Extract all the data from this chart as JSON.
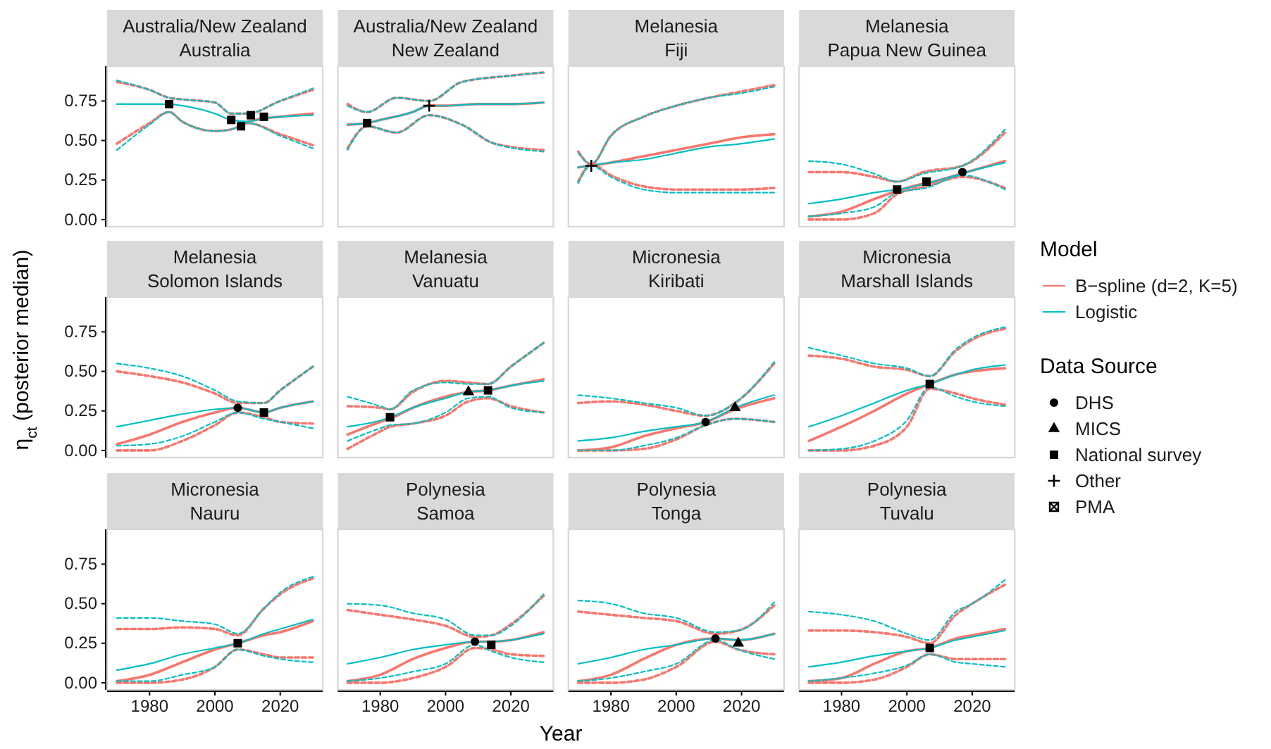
{
  "chart_data": [
    {
      "type": "line",
      "title": "Australia/New Zealand",
      "subtitle": "Australia",
      "xlim": [
        1967,
        2033
      ],
      "ylim": [
        -0.045,
        0.97
      ],
      "yticks": [
        {
          "value": 0,
          "label": "0.00"
        },
        {
          "value": 0.25,
          "label": "0.25"
        },
        {
          "value": 0.5,
          "label": "0.50"
        },
        {
          "value": 0.75,
          "label": "0.75"
        }
      ],
      "tick_labels": "y",
      "series": [
        {
          "color": "#f8766d",
          "line_style": "solid",
          "x": [
            2010,
            2015,
            2020,
            2030
          ],
          "values": [
            0.62,
            0.64,
            0.65,
            0.67
          ]
        },
        {
          "color": "#00bfc4",
          "line_style": "solid",
          "x": [
            1970,
            1980,
            1986,
            1990,
            2000,
            2005,
            2010,
            2015,
            2020,
            2030
          ],
          "values": [
            0.73,
            0.73,
            0.73,
            0.72,
            0.67,
            0.63,
            0.62,
            0.64,
            0.65,
            0.66
          ]
        },
        {
          "color": "#f8766d",
          "line_style": "dashed",
          "x": [
            1970,
            1980,
            1986,
            1990,
            2000,
            2005,
            2010,
            2020,
            2030
          ],
          "values": [
            0.87,
            0.82,
            0.77,
            0.76,
            0.74,
            0.67,
            0.67,
            0.75,
            0.82
          ]
        },
        {
          "color": "#00bfc4",
          "line_style": "dashed",
          "x": [
            1970,
            1980,
            1986,
            1990,
            2000,
            2005,
            2010,
            2020,
            2030
          ],
          "values": [
            0.88,
            0.82,
            0.77,
            0.76,
            0.74,
            0.67,
            0.67,
            0.75,
            0.83
          ]
        },
        {
          "color": "#f8766d",
          "line_style": "dashed",
          "x": [
            1970,
            1980,
            1986,
            1990,
            2000,
            2005,
            2010,
            2020,
            2030
          ],
          "values": [
            0.48,
            0.61,
            0.68,
            0.62,
            0.56,
            0.57,
            0.61,
            0.54,
            0.47
          ]
        },
        {
          "color": "#00bfc4",
          "line_style": "dashed",
          "x": [
            1970,
            1980,
            1986,
            1990,
            2000,
            2005,
            2010,
            2020,
            2030
          ],
          "values": [
            0.44,
            0.6,
            0.68,
            0.62,
            0.56,
            0.57,
            0.61,
            0.53,
            0.45
          ]
        },
        {
          "type": "scatter",
          "color": "#000000",
          "marker": "square",
          "x": [
            1986,
            2005,
            2008,
            2011,
            2015
          ],
          "values": [
            0.73,
            0.63,
            0.59,
            0.66,
            0.65
          ]
        }
      ]
    },
    {
      "type": "line",
      "title": "Australia/New Zealand",
      "subtitle": "New Zealand",
      "xlim": [
        1967,
        2033
      ],
      "ylim": [
        -0.045,
        0.97
      ],
      "tick_labels": false,
      "series": [
        {
          "color": "#f8766d",
          "line_style": "solid",
          "x": [
            1970,
            1976,
            1980,
            1990,
            1995,
            2000,
            2010,
            2020,
            2030
          ],
          "values": [
            0.6,
            0.61,
            0.63,
            0.68,
            0.72,
            0.72,
            0.73,
            0.73,
            0.74
          ]
        },
        {
          "color": "#00bfc4",
          "line_style": "solid",
          "x": [
            1970,
            1976,
            1980,
            1990,
            1995,
            2000,
            2010,
            2020,
            2030
          ],
          "values": [
            0.6,
            0.61,
            0.63,
            0.68,
            0.72,
            0.72,
            0.73,
            0.73,
            0.74
          ]
        },
        {
          "color": "#f8766d",
          "line_style": "dashed",
          "x": [
            1970,
            1976,
            1985,
            1995,
            2005,
            2020,
            2030
          ],
          "values": [
            0.73,
            0.68,
            0.77,
            0.75,
            0.87,
            0.91,
            0.93
          ]
        },
        {
          "color": "#00bfc4",
          "line_style": "dashed",
          "x": [
            1970,
            1976,
            1985,
            1995,
            2005,
            2020,
            2030
          ],
          "values": [
            0.72,
            0.68,
            0.77,
            0.75,
            0.87,
            0.91,
            0.93
          ]
        },
        {
          "color": "#f8766d",
          "line_style": "dashed",
          "x": [
            1970,
            1976,
            1985,
            1995,
            2005,
            2015,
            2030
          ],
          "values": [
            0.45,
            0.59,
            0.55,
            0.66,
            0.6,
            0.48,
            0.44
          ]
        },
        {
          "color": "#00bfc4",
          "line_style": "dashed",
          "x": [
            1970,
            1976,
            1985,
            1995,
            2005,
            2015,
            2030
          ],
          "values": [
            0.44,
            0.59,
            0.55,
            0.66,
            0.6,
            0.48,
            0.43
          ]
        },
        {
          "type": "scatter",
          "color": "#000000",
          "marker": "square",
          "x": [
            1976
          ],
          "values": [
            0.61
          ]
        },
        {
          "type": "scatter",
          "color": "#000000",
          "marker": "cross",
          "x": [
            1995
          ],
          "values": [
            0.72
          ]
        }
      ]
    },
    {
      "type": "line",
      "title": "Melanesia",
      "subtitle": "Fiji",
      "xlim": [
        1967,
        2033
      ],
      "ylim": [
        -0.045,
        0.97
      ],
      "tick_labels": false,
      "series": [
        {
          "color": "#f8766d",
          "line_style": "solid",
          "x": [
            1970,
            1980,
            1990,
            2000,
            2010,
            2020,
            2030
          ],
          "values": [
            0.33,
            0.36,
            0.4,
            0.44,
            0.48,
            0.52,
            0.54
          ]
        },
        {
          "color": "#00bfc4",
          "line_style": "solid",
          "x": [
            1970,
            1980,
            1990,
            2000,
            2010,
            2020,
            2030
          ],
          "values": [
            0.33,
            0.36,
            0.38,
            0.42,
            0.46,
            0.48,
            0.51
          ]
        },
        {
          "color": "#f8766d",
          "line_style": "dashed",
          "x": [
            1970,
            1974,
            1980,
            1990,
            2000,
            2010,
            2020,
            2030
          ],
          "values": [
            0.43,
            0.35,
            0.53,
            0.65,
            0.72,
            0.77,
            0.81,
            0.85
          ]
        },
        {
          "color": "#00bfc4",
          "line_style": "dashed",
          "x": [
            1970,
            1974,
            1980,
            1990,
            2000,
            2010,
            2020,
            2030
          ],
          "values": [
            0.42,
            0.35,
            0.53,
            0.65,
            0.72,
            0.77,
            0.8,
            0.84
          ]
        },
        {
          "color": "#f8766d",
          "line_style": "dashed",
          "x": [
            1970,
            1974,
            1980,
            1990,
            2000,
            2010,
            2020,
            2030
          ],
          "values": [
            0.24,
            0.35,
            0.28,
            0.21,
            0.19,
            0.19,
            0.19,
            0.2
          ]
        },
        {
          "color": "#00bfc4",
          "line_style": "dashed",
          "x": [
            1970,
            1974,
            1980,
            1990,
            2000,
            2010,
            2020,
            2030
          ],
          "values": [
            0.23,
            0.34,
            0.27,
            0.19,
            0.17,
            0.17,
            0.17,
            0.17
          ]
        },
        {
          "type": "scatter",
          "color": "#000000",
          "marker": "cross",
          "x": [
            1974
          ],
          "values": [
            0.34
          ]
        }
      ]
    },
    {
      "type": "line",
      "title": "Melanesia",
      "subtitle": "Papua New Guinea",
      "xlim": [
        1967,
        2033
      ],
      "ylim": [
        -0.045,
        0.97
      ],
      "tick_labels": false,
      "series": [
        {
          "color": "#f8766d",
          "line_style": "solid",
          "x": [
            1970,
            1980,
            1990,
            2000,
            2010,
            2020,
            2030
          ],
          "values": [
            0.02,
            0.05,
            0.13,
            0.2,
            0.25,
            0.31,
            0.37
          ]
        },
        {
          "color": "#00bfc4",
          "line_style": "solid",
          "x": [
            1970,
            1980,
            1990,
            2000,
            2010,
            2020,
            2030
          ],
          "values": [
            0.1,
            0.13,
            0.17,
            0.2,
            0.25,
            0.31,
            0.36
          ]
        },
        {
          "color": "#f8766d",
          "line_style": "dashed",
          "x": [
            1970,
            1980,
            1990,
            1997,
            2005,
            2017,
            2030
          ],
          "values": [
            0.3,
            0.3,
            0.27,
            0.24,
            0.3,
            0.34,
            0.55
          ]
        },
        {
          "color": "#00bfc4",
          "line_style": "dashed",
          "x": [
            1970,
            1980,
            1990,
            1997,
            2005,
            2017,
            2030
          ],
          "values": [
            0.37,
            0.35,
            0.29,
            0.24,
            0.29,
            0.34,
            0.57
          ]
        },
        {
          "color": "#f8766d",
          "line_style": "dashed",
          "x": [
            1970,
            1980,
            1990,
            1997,
            2006,
            2017,
            2030
          ],
          "values": [
            0,
            0,
            0.04,
            0.16,
            0.21,
            0.27,
            0.2
          ]
        },
        {
          "color": "#00bfc4",
          "line_style": "dashed",
          "x": [
            1970,
            1980,
            1990,
            1997,
            2006,
            2017,
            2030
          ],
          "values": [
            0.02,
            0.04,
            0.08,
            0.17,
            0.2,
            0.28,
            0.19
          ]
        },
        {
          "type": "scatter",
          "color": "#000000",
          "marker": "square",
          "x": [
            1997,
            2006
          ],
          "values": [
            0.19,
            0.24
          ]
        },
        {
          "type": "scatter",
          "color": "#000000",
          "marker": "circle",
          "x": [
            2017
          ],
          "values": [
            0.3
          ]
        }
      ]
    },
    {
      "type": "line",
      "title": "Melanesia",
      "subtitle": "Solomon Islands",
      "ylabel": "η$_{ct}$ (posterior median)",
      "xlim": [
        1967,
        2033
      ],
      "ylim": [
        -0.045,
        0.97
      ],
      "yticks": [
        {
          "value": 0,
          "label": "0.00"
        },
        {
          "value": 0.25,
          "label": "0.25"
        },
        {
          "value": 0.5,
          "label": "0.50"
        },
        {
          "value": 0.75,
          "label": "0.75"
        }
      ],
      "tick_labels": "y",
      "series": [
        {
          "color": "#f8766d",
          "line_style": "solid",
          "x": [
            1970,
            1980,
            1990,
            2000,
            2007,
            2015,
            2020,
            2030
          ],
          "values": [
            0.04,
            0.1,
            0.18,
            0.24,
            0.27,
            0.24,
            0.27,
            0.31
          ]
        },
        {
          "color": "#00bfc4",
          "line_style": "solid",
          "x": [
            1970,
            1980,
            1990,
            2000,
            2007,
            2015,
            2020,
            2030
          ],
          "values": [
            0.15,
            0.19,
            0.23,
            0.26,
            0.27,
            0.24,
            0.27,
            0.31
          ]
        },
        {
          "color": "#f8766d",
          "line_style": "dashed",
          "x": [
            1970,
            1980,
            1990,
            2000,
            2007,
            2015,
            2020,
            2030
          ],
          "values": [
            0.5,
            0.47,
            0.43,
            0.36,
            0.3,
            0.3,
            0.38,
            0.53
          ]
        },
        {
          "color": "#00bfc4",
          "line_style": "dashed",
          "x": [
            1970,
            1980,
            1990,
            2000,
            2007,
            2015,
            2020,
            2030
          ],
          "values": [
            0.55,
            0.52,
            0.47,
            0.38,
            0.31,
            0.3,
            0.38,
            0.53
          ]
        },
        {
          "color": "#f8766d",
          "line_style": "dashed",
          "x": [
            1970,
            1980,
            1990,
            2000,
            2007,
            2015,
            2020,
            2030
          ],
          "values": [
            0,
            0,
            0.06,
            0.16,
            0.24,
            0.21,
            0.18,
            0.17
          ]
        },
        {
          "color": "#00bfc4",
          "line_style": "dashed",
          "x": [
            1970,
            1980,
            1990,
            2000,
            2007,
            2015,
            2020,
            2030
          ],
          "values": [
            0.03,
            0.04,
            0.09,
            0.18,
            0.24,
            0.2,
            0.18,
            0.14
          ]
        },
        {
          "type": "scatter",
          "color": "#000000",
          "marker": "circle",
          "x": [
            2007
          ],
          "values": [
            0.27
          ]
        },
        {
          "type": "scatter",
          "color": "#000000",
          "marker": "square",
          "x": [
            2015
          ],
          "values": [
            0.24
          ]
        }
      ]
    },
    {
      "type": "line",
      "title": "Melanesia",
      "subtitle": "Vanuatu",
      "xlim": [
        1967,
        2033
      ],
      "ylim": [
        -0.045,
        0.97
      ],
      "tick_labels": false,
      "series": [
        {
          "color": "#f8766d",
          "line_style": "solid",
          "x": [
            1970,
            1980,
            1983,
            1990,
            2000,
            2007,
            2013,
            2020,
            2030
          ],
          "values": [
            0.1,
            0.18,
            0.2,
            0.27,
            0.34,
            0.37,
            0.38,
            0.41,
            0.45
          ]
        },
        {
          "color": "#00bfc4",
          "line_style": "solid",
          "x": [
            1970,
            1980,
            1983,
            1990,
            2000,
            2007,
            2013,
            2020,
            2030
          ],
          "values": [
            0.15,
            0.19,
            0.21,
            0.27,
            0.33,
            0.37,
            0.38,
            0.41,
            0.44
          ]
        },
        {
          "color": "#f8766d",
          "line_style": "dashed",
          "x": [
            1970,
            1980,
            1983,
            1990,
            2000,
            2007,
            2013,
            2020,
            2030
          ],
          "values": [
            0.28,
            0.27,
            0.26,
            0.37,
            0.44,
            0.43,
            0.42,
            0.53,
            0.68
          ]
        },
        {
          "color": "#00bfc4",
          "line_style": "dashed",
          "x": [
            1970,
            1980,
            1983,
            1990,
            2000,
            2007,
            2013,
            2020,
            2030
          ],
          "values": [
            0.34,
            0.28,
            0.26,
            0.38,
            0.43,
            0.42,
            0.42,
            0.53,
            0.68
          ]
        },
        {
          "color": "#f8766d",
          "line_style": "dashed",
          "x": [
            1970,
            1980,
            1983,
            1990,
            2000,
            2007,
            2013,
            2020,
            2030
          ],
          "values": [
            0.01,
            0.12,
            0.15,
            0.17,
            0.22,
            0.31,
            0.33,
            0.28,
            0.24
          ]
        },
        {
          "color": "#00bfc4",
          "line_style": "dashed",
          "x": [
            1970,
            1980,
            1983,
            1990,
            2000,
            2007,
            2013,
            2020,
            2030
          ],
          "values": [
            0.06,
            0.14,
            0.16,
            0.17,
            0.24,
            0.33,
            0.34,
            0.27,
            0.24
          ]
        },
        {
          "type": "scatter",
          "color": "#000000",
          "marker": "square",
          "x": [
            1983,
            2013
          ],
          "values": [
            0.21,
            0.38
          ]
        },
        {
          "type": "scatter",
          "color": "#000000",
          "marker": "triangle",
          "x": [
            2007
          ],
          "values": [
            0.37
          ]
        }
      ]
    },
    {
      "type": "line",
      "title": "Micronesia",
      "subtitle": "Kiribati",
      "xlim": [
        1967,
        2033
      ],
      "ylim": [
        -0.045,
        0.97
      ],
      "tick_labels": false,
      "series": [
        {
          "color": "#f8766d",
          "line_style": "solid",
          "x": [
            1970,
            1980,
            1990,
            2000,
            2009,
            2018,
            2030
          ],
          "values": [
            0,
            0.02,
            0.09,
            0.14,
            0.18,
            0.26,
            0.33
          ]
        },
        {
          "color": "#00bfc4",
          "line_style": "solid",
          "x": [
            1970,
            1980,
            1990,
            2000,
            2009,
            2018,
            2030
          ],
          "values": [
            0.06,
            0.08,
            0.12,
            0.15,
            0.18,
            0.27,
            0.35
          ]
        },
        {
          "color": "#f8766d",
          "line_style": "dashed",
          "x": [
            1970,
            1980,
            1990,
            2000,
            2009,
            2018,
            2030
          ],
          "values": [
            0.3,
            0.31,
            0.29,
            0.25,
            0.22,
            0.3,
            0.55
          ]
        },
        {
          "color": "#00bfc4",
          "line_style": "dashed",
          "x": [
            1970,
            1980,
            1990,
            2000,
            2009,
            2018,
            2030
          ],
          "values": [
            0.35,
            0.33,
            0.3,
            0.27,
            0.22,
            0.3,
            0.56
          ]
        },
        {
          "color": "#f8766d",
          "line_style": "dashed",
          "x": [
            1970,
            1980,
            1990,
            2000,
            2009,
            2018,
            2030
          ],
          "values": [
            0,
            0,
            0.01,
            0.07,
            0.16,
            0.2,
            0.18
          ]
        },
        {
          "color": "#00bfc4",
          "line_style": "dashed",
          "x": [
            1970,
            1980,
            1990,
            2000,
            2009,
            2018,
            2030
          ],
          "values": [
            0,
            0,
            0.03,
            0.08,
            0.16,
            0.2,
            0.18
          ]
        },
        {
          "type": "scatter",
          "color": "#000000",
          "marker": "circle",
          "x": [
            2009
          ],
          "values": [
            0.18
          ]
        },
        {
          "type": "scatter",
          "color": "#000000",
          "marker": "triangle",
          "x": [
            2018
          ],
          "values": [
            0.27
          ]
        }
      ]
    },
    {
      "type": "line",
      "title": "Micronesia",
      "subtitle": "Marshall Islands",
      "legend": "right",
      "legend_title": "Model",
      "xlim": [
        1967,
        2033
      ],
      "ylim": [
        -0.045,
        0.97
      ],
      "tick_labels": false,
      "series": [
        {
          "name": "B−spline (d=2, K=5)",
          "color": "#f8766d",
          "line_style": "solid",
          "x": [
            1970,
            1980,
            1990,
            2000,
            2007,
            2015,
            2020,
            2030
          ],
          "values": [
            0.06,
            0.15,
            0.25,
            0.36,
            0.42,
            0.48,
            0.5,
            0.52
          ]
        },
        {
          "name": "Logistic",
          "color": "#00bfc4",
          "line_style": "solid",
          "x": [
            1970,
            1980,
            1990,
            2000,
            2007,
            2015,
            2020,
            2030
          ],
          "values": [
            0.15,
            0.22,
            0.3,
            0.38,
            0.42,
            0.48,
            0.51,
            0.54
          ]
        },
        {
          "color": "#f8766d",
          "line_style": "dashed",
          "x": [
            1970,
            1980,
            1990,
            2000,
            2007,
            2015,
            2020,
            2030
          ],
          "values": [
            0.6,
            0.58,
            0.53,
            0.51,
            0.47,
            0.63,
            0.7,
            0.77
          ]
        },
        {
          "color": "#00bfc4",
          "line_style": "dashed",
          "x": [
            1970,
            1980,
            1990,
            2000,
            2007,
            2015,
            2020,
            2030
          ],
          "values": [
            0.65,
            0.6,
            0.55,
            0.52,
            0.47,
            0.64,
            0.71,
            0.78
          ]
        },
        {
          "color": "#f8766d",
          "line_style": "dashed",
          "x": [
            1970,
            1980,
            1990,
            2000,
            2007,
            2015,
            2020,
            2030
          ],
          "values": [
            0,
            0,
            0.03,
            0.15,
            0.39,
            0.36,
            0.33,
            0.29
          ]
        },
        {
          "color": "#00bfc4",
          "line_style": "dashed",
          "x": [
            1970,
            1980,
            1990,
            2000,
            2007,
            2015,
            2020,
            2030
          ],
          "values": [
            0,
            0.01,
            0.06,
            0.19,
            0.4,
            0.34,
            0.31,
            0.28
          ]
        },
        {
          "type": "scatter",
          "color": "#000000",
          "marker": "square",
          "x": [
            2007
          ],
          "values": [
            0.42
          ]
        }
      ]
    },
    {
      "type": "line",
      "title": "Micronesia",
      "subtitle": "Nauru",
      "xlim": [
        1967,
        2033
      ],
      "ylim": [
        -0.045,
        0.97
      ],
      "xticks": [
        1980,
        2000,
        2020
      ],
      "yticks": [
        {
          "value": 0,
          "label": "0.00"
        },
        {
          "value": 0.25,
          "label": "0.25"
        },
        {
          "value": 0.5,
          "label": "0.50"
        },
        {
          "value": 0.75,
          "label": "0.75"
        }
      ],
      "series": [
        {
          "color": "#f8766d",
          "line_style": "solid",
          "x": [
            1970,
            1980,
            1990,
            2000,
            2007,
            2015,
            2020,
            2030
          ],
          "values": [
            0.01,
            0.05,
            0.13,
            0.21,
            0.25,
            0.3,
            0.32,
            0.39
          ]
        },
        {
          "color": "#00bfc4",
          "line_style": "solid",
          "x": [
            1970,
            1980,
            1990,
            2000,
            2007,
            2015,
            2020,
            2030
          ],
          "values": [
            0.08,
            0.12,
            0.18,
            0.22,
            0.25,
            0.31,
            0.34,
            0.4
          ]
        },
        {
          "color": "#f8766d",
          "line_style": "dashed",
          "x": [
            1970,
            1980,
            1990,
            2000,
            2007,
            2015,
            2020,
            2030
          ],
          "values": [
            0.34,
            0.34,
            0.35,
            0.34,
            0.3,
            0.47,
            0.56,
            0.66
          ]
        },
        {
          "color": "#00bfc4",
          "line_style": "dashed",
          "x": [
            1970,
            1980,
            1990,
            2000,
            2007,
            2015,
            2020,
            2030
          ],
          "values": [
            0.41,
            0.41,
            0.39,
            0.37,
            0.31,
            0.47,
            0.57,
            0.67
          ]
        },
        {
          "color": "#f8766d",
          "line_style": "dashed",
          "x": [
            1970,
            1980,
            1990,
            2000,
            2007,
            2015,
            2020,
            2030
          ],
          "values": [
            0,
            0,
            0.02,
            0.1,
            0.21,
            0.18,
            0.16,
            0.16
          ]
        },
        {
          "color": "#00bfc4",
          "line_style": "dashed",
          "x": [
            1970,
            1980,
            1990,
            2000,
            2007,
            2015,
            2020,
            2030
          ],
          "values": [
            0.01,
            0.01,
            0.05,
            0.1,
            0.21,
            0.17,
            0.15,
            0.13
          ]
        },
        {
          "type": "scatter",
          "color": "#000000",
          "marker": "square",
          "x": [
            2007
          ],
          "values": [
            0.25
          ]
        }
      ]
    },
    {
      "type": "line",
      "title": "Polynesia",
      "subtitle": "Samoa",
      "xlabel": "Year",
      "xlim": [
        1967,
        2033
      ],
      "ylim": [
        -0.045,
        0.97
      ],
      "xticks": [
        1980,
        2000,
        2020
      ],
      "tick_labels": "x",
      "series": [
        {
          "color": "#f8766d",
          "line_style": "solid",
          "x": [
            1970,
            1980,
            1990,
            2000,
            2009,
            2014,
            2020,
            2030
          ],
          "values": [
            0.01,
            0.05,
            0.15,
            0.22,
            0.26,
            0.26,
            0.27,
            0.32
          ]
        },
        {
          "color": "#00bfc4",
          "line_style": "solid",
          "x": [
            1970,
            1980,
            1990,
            2000,
            2009,
            2014,
            2020,
            2030
          ],
          "values": [
            0.12,
            0.16,
            0.21,
            0.24,
            0.26,
            0.26,
            0.27,
            0.31
          ]
        },
        {
          "color": "#f8766d",
          "line_style": "dashed",
          "x": [
            1970,
            1980,
            1990,
            2000,
            2009,
            2014,
            2020,
            2030
          ],
          "values": [
            0.46,
            0.43,
            0.4,
            0.36,
            0.29,
            0.3,
            0.37,
            0.55
          ]
        },
        {
          "color": "#00bfc4",
          "line_style": "dashed",
          "x": [
            1970,
            1980,
            1990,
            2000,
            2009,
            2014,
            2020,
            2030
          ],
          "values": [
            0.5,
            0.49,
            0.44,
            0.4,
            0.3,
            0.3,
            0.36,
            0.56
          ]
        },
        {
          "color": "#f8766d",
          "line_style": "dashed",
          "x": [
            1970,
            1980,
            1990,
            2000,
            2009,
            2014,
            2020,
            2030
          ],
          "values": [
            0,
            0,
            0.03,
            0.1,
            0.22,
            0.21,
            0.18,
            0.17
          ]
        },
        {
          "color": "#00bfc4",
          "line_style": "dashed",
          "x": [
            1970,
            1980,
            1990,
            2000,
            2009,
            2014,
            2020,
            2030
          ],
          "values": [
            0.01,
            0.03,
            0.07,
            0.12,
            0.24,
            0.2,
            0.16,
            0.13
          ]
        },
        {
          "type": "scatter",
          "color": "#000000",
          "marker": "circle",
          "x": [
            2009
          ],
          "values": [
            0.26
          ]
        },
        {
          "type": "scatter",
          "color": "#000000",
          "marker": "square",
          "x": [
            2014
          ],
          "values": [
            0.24
          ]
        }
      ]
    },
    {
      "type": "line",
      "title": "Polynesia",
      "subtitle": "Tonga",
      "xlim": [
        1967,
        2033
      ],
      "ylim": [
        -0.045,
        0.97
      ],
      "xticks": [
        1980,
        2000,
        2020
      ],
      "tick_labels": "x",
      "series": [
        {
          "color": "#f8766d",
          "line_style": "solid",
          "x": [
            1970,
            1980,
            1990,
            2000,
            2012,
            2019,
            2030
          ],
          "values": [
            0.01,
            0.05,
            0.15,
            0.24,
            0.28,
            0.27,
            0.31
          ]
        },
        {
          "color": "#00bfc4",
          "line_style": "solid",
          "x": [
            1970,
            1980,
            1990,
            2000,
            2012,
            2019,
            2030
          ],
          "values": [
            0.12,
            0.16,
            0.21,
            0.24,
            0.28,
            0.27,
            0.31
          ]
        },
        {
          "color": "#f8766d",
          "line_style": "dashed",
          "x": [
            1970,
            1980,
            1990,
            2000,
            2012,
            2019,
            2030
          ],
          "values": [
            0.45,
            0.43,
            0.41,
            0.39,
            0.31,
            0.33,
            0.49
          ]
        },
        {
          "color": "#00bfc4",
          "line_style": "dashed",
          "x": [
            1970,
            1980,
            1990,
            2000,
            2012,
            2019,
            2030
          ],
          "values": [
            0.52,
            0.5,
            0.44,
            0.41,
            0.32,
            0.33,
            0.51
          ]
        },
        {
          "color": "#f8766d",
          "line_style": "dashed",
          "x": [
            1970,
            1980,
            1990,
            2000,
            2012,
            2019,
            2030
          ],
          "values": [
            0,
            0,
            0.02,
            0.1,
            0.26,
            0.21,
            0.18
          ]
        },
        {
          "color": "#00bfc4",
          "line_style": "dashed",
          "x": [
            1970,
            1980,
            1990,
            2000,
            2012,
            2019,
            2030
          ],
          "values": [
            0.01,
            0.03,
            0.07,
            0.12,
            0.27,
            0.21,
            0.15
          ]
        },
        {
          "type": "scatter",
          "color": "#000000",
          "marker": "circle",
          "x": [
            2012
          ],
          "values": [
            0.28
          ]
        },
        {
          "type": "scatter",
          "color": "#000000",
          "marker": "triangle",
          "x": [
            2019
          ],
          "values": [
            0.25
          ]
        }
      ]
    },
    {
      "type": "line",
      "title": "Polynesia",
      "subtitle": "Tuvalu",
      "legend": "right",
      "legend_title": "Data Source",
      "xlim": [
        1967,
        2033
      ],
      "ylim": [
        -0.045,
        0.97
      ],
      "xticks": [
        1980,
        2000,
        2020
      ],
      "tick_labels": "x",
      "series": [
        {
          "color": "#f8766d",
          "line_style": "solid",
          "x": [
            1970,
            1980,
            1990,
            2000,
            2007,
            2015,
            2020,
            2030
          ],
          "values": [
            0.01,
            0.03,
            0.12,
            0.2,
            0.22,
            0.28,
            0.3,
            0.34
          ]
        },
        {
          "color": "#00bfc4",
          "line_style": "solid",
          "x": [
            1970,
            1980,
            1990,
            2000,
            2007,
            2015,
            2020,
            2030
          ],
          "values": [
            0.1,
            0.13,
            0.17,
            0.2,
            0.22,
            0.27,
            0.29,
            0.33
          ]
        },
        {
          "color": "#f8766d",
          "line_style": "dashed",
          "x": [
            1970,
            1980,
            1990,
            2000,
            2007,
            2015,
            2020,
            2030
          ],
          "values": [
            0.33,
            0.33,
            0.32,
            0.29,
            0.25,
            0.43,
            0.5,
            0.62
          ]
        },
        {
          "color": "#00bfc4",
          "line_style": "dashed",
          "x": [
            1970,
            1980,
            1990,
            2000,
            2007,
            2015,
            2020,
            2030
          ],
          "values": [
            0.45,
            0.43,
            0.39,
            0.31,
            0.27,
            0.45,
            0.5,
            0.65
          ]
        },
        {
          "color": "#f8766d",
          "line_style": "dashed",
          "x": [
            1970,
            1980,
            1990,
            2000,
            2007,
            2015,
            2020,
            2030
          ],
          "values": [
            0,
            0,
            0.02,
            0.1,
            0.18,
            0.15,
            0.15,
            0.15
          ]
        },
        {
          "color": "#00bfc4",
          "line_style": "dashed",
          "x": [
            1970,
            1980,
            1990,
            2000,
            2007,
            2015,
            2020,
            2030
          ],
          "values": [
            0.01,
            0.03,
            0.06,
            0.11,
            0.18,
            0.13,
            0.12,
            0.1
          ]
        },
        {
          "type": "scatter",
          "name": "DHS",
          "color": "#000000",
          "marker": "circle"
        },
        {
          "type": "scatter",
          "name": "MICS",
          "color": "#000000",
          "marker": "triangle"
        },
        {
          "type": "scatter",
          "name": "National survey",
          "color": "#000000",
          "marker": "square",
          "x": [
            2007
          ],
          "values": [
            0.22
          ]
        },
        {
          "type": "scatter",
          "name": "Other",
          "color": "#000000",
          "marker": "cross"
        },
        {
          "type": "scatter",
          "name": "PMA",
          "color": "#000000",
          "marker": "square-cross"
        }
      ]
    }
  ]
}
